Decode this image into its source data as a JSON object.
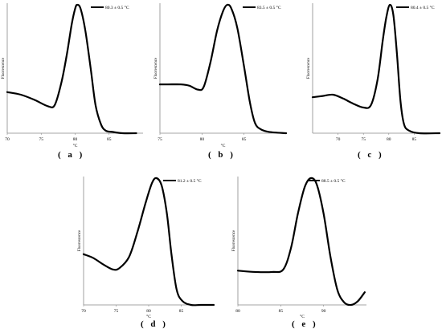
{
  "chart_data": [
    {
      "id": "a",
      "type": "line",
      "caption": "( a )",
      "ylabel": "Fluorescence",
      "xlabel": "°C",
      "xlim": [
        70,
        90
      ],
      "xticks": [
        70,
        75,
        80,
        85
      ],
      "ylim": [
        0,
        1
      ],
      "grid": false,
      "legend_position": "top-right",
      "series": [
        {
          "name": "80.3 ± 0.5 °C",
          "x": [
            70,
            72,
            74,
            76,
            77,
            78,
            78.8,
            79.5,
            80,
            80.3,
            80.8,
            81.5,
            82.3,
            83,
            83.8,
            84.5,
            85.5,
            87,
            89
          ],
          "y": [
            0.32,
            0.3,
            0.26,
            0.21,
            0.22,
            0.4,
            0.62,
            0.85,
            0.97,
            1.0,
            0.97,
            0.8,
            0.5,
            0.22,
            0.07,
            0.02,
            0.01,
            0.0,
            0.0
          ]
        }
      ]
    },
    {
      "id": "b",
      "type": "line",
      "caption": "( b )",
      "ylabel": "Fluorescence",
      "xlabel": "°C",
      "xlim": [
        75,
        90
      ],
      "xticks": [
        75,
        80,
        85
      ],
      "ylim": [
        0,
        1
      ],
      "grid": false,
      "legend_position": "top-right",
      "series": [
        {
          "name": "83.5 ± 0.5 °C",
          "x": [
            75,
            76,
            77.5,
            78.5,
            79.5,
            80.2,
            81,
            81.8,
            82.5,
            83,
            83.5,
            84.2,
            85,
            85.7,
            86.3,
            87,
            88,
            90
          ],
          "y": [
            0.38,
            0.38,
            0.38,
            0.37,
            0.34,
            0.36,
            0.55,
            0.8,
            0.95,
            1.0,
            0.97,
            0.82,
            0.52,
            0.24,
            0.08,
            0.03,
            0.01,
            0.0
          ]
        }
      ]
    },
    {
      "id": "c",
      "type": "line",
      "caption": "( c )",
      "ylabel": "Fluorescence",
      "xlabel": "",
      "xlim": [
        65,
        90
      ],
      "xticks": [
        70,
        75,
        80,
        85
      ],
      "ylim": [
        0,
        1
      ],
      "grid": false,
      "legend_position": "top-right",
      "series": [
        {
          "name": "80.4 ± 0.5 °C",
          "x": [
            65,
            67,
            69,
            71,
            73,
            75,
            76.5,
            77.8,
            78.8,
            79.5,
            80.2,
            80.9,
            81.6,
            82.3,
            83,
            84,
            86,
            90
          ],
          "y": [
            0.28,
            0.29,
            0.3,
            0.27,
            0.23,
            0.2,
            0.22,
            0.42,
            0.72,
            0.9,
            1.0,
            0.92,
            0.62,
            0.25,
            0.07,
            0.02,
            0.0,
            0.0
          ]
        }
      ]
    },
    {
      "id": "d",
      "type": "line",
      "caption": "( d )",
      "ylabel": "Fluorescence",
      "xlabel": "°C",
      "xlim": [
        70,
        90
      ],
      "xticks": [
        70,
        75,
        80,
        85
      ],
      "ylim": [
        0,
        1
      ],
      "grid": false,
      "legend_position": "top-right",
      "series": [
        {
          "name": "81.2 ± 0.5 °C",
          "x": [
            70,
            71.5,
            73,
            74.5,
            75.5,
            77,
            78.3,
            79.5,
            80.5,
            81.2,
            82,
            82.8,
            83.5,
            84.3,
            85.2,
            86.5,
            88,
            90
          ],
          "y": [
            0.4,
            0.37,
            0.32,
            0.28,
            0.29,
            0.38,
            0.58,
            0.8,
            0.96,
            1.0,
            0.94,
            0.72,
            0.4,
            0.12,
            0.03,
            0.0,
            0.0,
            0.0
          ]
        }
      ]
    },
    {
      "id": "e",
      "type": "line",
      "caption": "( e )",
      "ylabel": "Fluorescence",
      "xlabel": "°C",
      "xlim": [
        80,
        95
      ],
      "xticks": [
        80,
        85,
        90
      ],
      "ylim": [
        0,
        1
      ],
      "grid": false,
      "legend_position": "top-right",
      "series": [
        {
          "name": "88.5 ± 0.5 °C",
          "x": [
            80,
            82,
            84,
            85.3,
            86.2,
            87,
            87.8,
            88.5,
            89.2,
            90,
            90.8,
            91.6,
            92.4,
            93.2,
            94,
            94.8
          ],
          "y": [
            0.27,
            0.26,
            0.26,
            0.28,
            0.45,
            0.72,
            0.93,
            1.0,
            0.95,
            0.72,
            0.38,
            0.12,
            0.02,
            0.0,
            0.03,
            0.1
          ]
        }
      ]
    }
  ]
}
